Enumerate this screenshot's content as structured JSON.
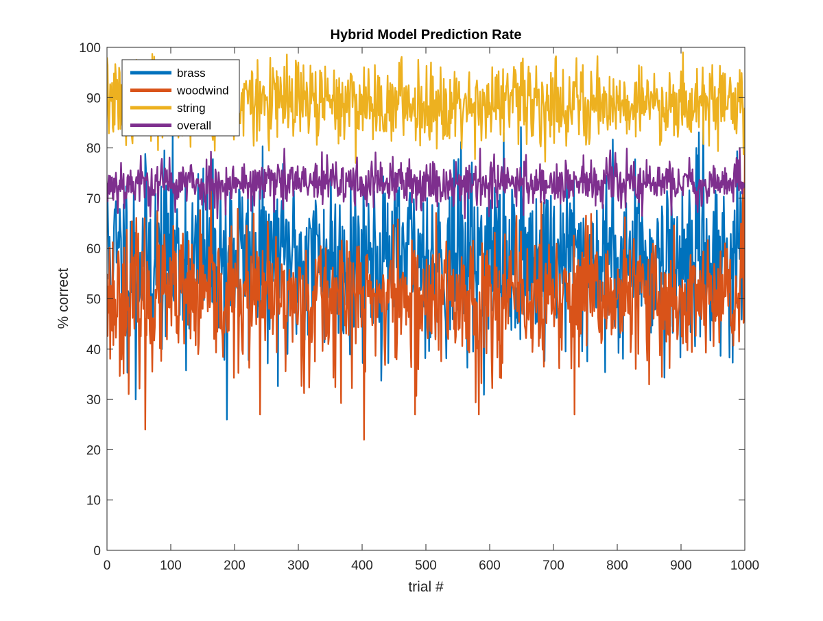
{
  "chart_data": {
    "type": "line",
    "title": "Hybrid Model Prediction Rate",
    "xlabel": "trial #",
    "ylabel": "% correct",
    "xlim": [
      0,
      1000
    ],
    "ylim": [
      0,
      100
    ],
    "xticks": [
      0,
      100,
      200,
      300,
      400,
      500,
      600,
      700,
      800,
      900,
      1000
    ],
    "yticks": [
      0,
      10,
      20,
      30,
      40,
      50,
      60,
      70,
      80,
      90,
      100
    ],
    "xtick_labels": [
      "0",
      "100",
      "200",
      "300",
      "400",
      "500",
      "600",
      "700",
      "800",
      "900",
      "1000"
    ],
    "ytick_labels": [
      "0",
      "10",
      "20",
      "30",
      "40",
      "50",
      "60",
      "70",
      "80",
      "90",
      "100"
    ],
    "grid": false,
    "legend_position": "top-left",
    "series": [
      {
        "name": "brass",
        "color": "#0072BD",
        "summary": {
          "center": 58,
          "spread": 9,
          "min": 26,
          "max": 87,
          "n_points": 1001
        },
        "x": [
          0,
          45,
          100,
          188,
          250,
          300,
          350,
          400,
          450,
          500,
          550,
          600,
          650,
          700,
          750,
          800,
          850,
          900,
          935,
          1000
        ],
        "values": [
          66,
          30,
          72,
          26,
          64,
          55,
          62,
          58,
          60,
          56,
          74,
          60,
          58,
          66,
          60,
          58,
          45,
          60,
          87,
          66
        ]
      },
      {
        "name": "woodwind",
        "color": "#D95319",
        "summary": {
          "center": 50,
          "spread": 7,
          "min": 22,
          "max": 80,
          "n_points": 1001
        },
        "x": [
          0,
          60,
          100,
          150,
          200,
          240,
          300,
          350,
          403,
          450,
          483,
          500,
          550,
          583,
          650,
          700,
          733,
          800,
          850,
          900,
          950,
          1000
        ],
        "values": [
          55,
          24,
          52,
          48,
          50,
          27,
          48,
          52,
          22,
          50,
          27,
          51,
          49,
          27,
          50,
          52,
          27,
          50,
          33,
          52,
          49,
          80
        ]
      },
      {
        "name": "string",
        "color": "#EDB120",
        "summary": {
          "center": 89,
          "spread": 4,
          "min": 77,
          "max": 99,
          "n_points": 1001
        },
        "x": [
          0,
          50,
          100,
          150,
          200,
          250,
          300,
          350,
          400,
          450,
          500,
          550,
          600,
          650,
          700,
          750,
          800,
          850,
          903,
          950,
          1000
        ],
        "values": [
          98,
          88,
          90,
          87,
          89,
          90,
          97,
          88,
          90,
          89,
          88,
          90,
          89,
          97,
          88,
          90,
          89,
          88,
          99,
          90,
          88
        ]
      },
      {
        "name": "overall",
        "color": "#7E2F8E",
        "summary": {
          "center": 73,
          "spread": 2.5,
          "min": 66,
          "max": 81,
          "n_points": 1001
        },
        "x": [
          0,
          50,
          100,
          150,
          200,
          250,
          300,
          350,
          400,
          450,
          500,
          550,
          600,
          650,
          700,
          750,
          800,
          850,
          900,
          950,
          1000
        ],
        "values": [
          73,
          74,
          72,
          73,
          74,
          73,
          72,
          74,
          73,
          72,
          74,
          73,
          72,
          74,
          73,
          72,
          74,
          73,
          72,
          74,
          73
        ]
      }
    ]
  }
}
